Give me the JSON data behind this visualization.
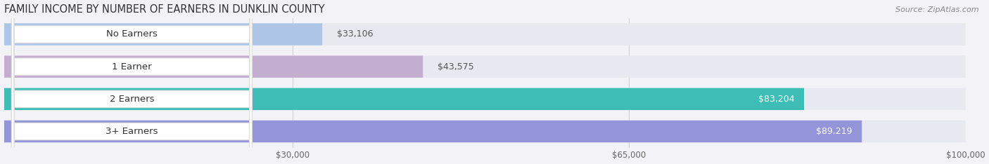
{
  "title": "FAMILY INCOME BY NUMBER OF EARNERS IN DUNKLIN COUNTY",
  "source": "Source: ZipAtlas.com",
  "categories": [
    "No Earners",
    "1 Earner",
    "2 Earners",
    "3+ Earners"
  ],
  "values": [
    33106,
    43575,
    83204,
    89219
  ],
  "bar_colors": [
    "#adc6e8",
    "#c4aed0",
    "#3dbdb5",
    "#9494d8"
  ],
  "bar_bg_color": "#e8e8f0",
  "value_labels": [
    "$33,106",
    "$43,575",
    "$83,204",
    "$89,219"
  ],
  "x_min": 0,
  "x_max": 100000,
  "x_ticks": [
    30000,
    65000,
    100000
  ],
  "x_tick_labels": [
    "$30,000",
    "$65,000",
    "$100,000"
  ],
  "background_color": "#f2f2f7",
  "title_fontsize": 10.5,
  "label_fontsize": 9.5,
  "value_fontsize": 9
}
